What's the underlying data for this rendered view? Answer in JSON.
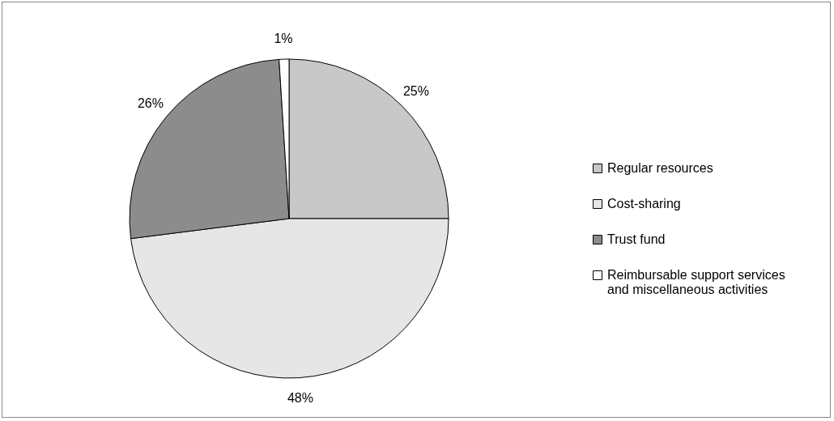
{
  "chart_data": {
    "type": "pie",
    "categories": [
      "Regular resources",
      "Cost-sharing",
      "Trust fund",
      "Reimbursable support services and miscellaneous activities"
    ],
    "values": [
      25,
      48,
      26,
      1
    ],
    "value_labels": [
      "25%",
      "48%",
      "26%",
      "1%"
    ],
    "colors": [
      "#c8c8c8",
      "#e6e6e6",
      "#8c8c8c",
      "#ffffff"
    ],
    "legend": "right"
  }
}
